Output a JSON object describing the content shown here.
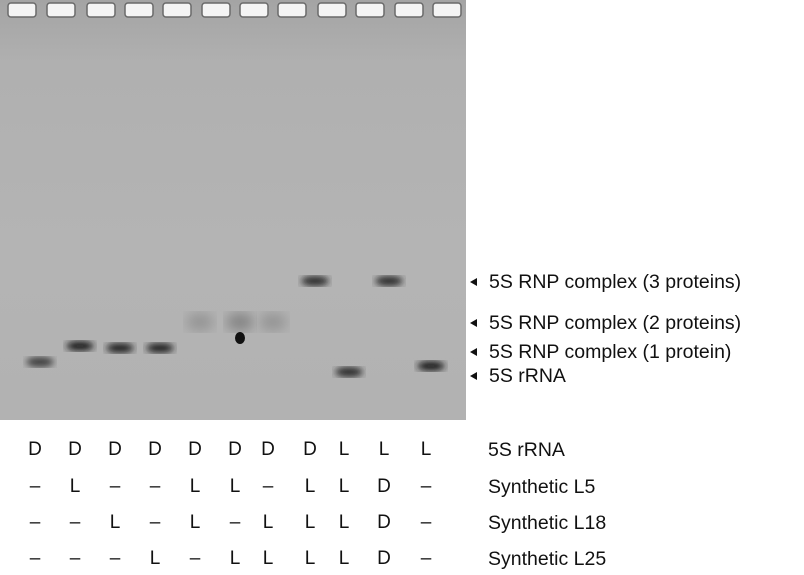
{
  "gel": {
    "lanes": 11,
    "bands": [
      {
        "lane": 1,
        "species": "5S rRNA",
        "intensity": 0.75
      },
      {
        "lane": 2,
        "species": "5S RNP complex (1 protein)",
        "intensity": 0.95
      },
      {
        "lane": 3,
        "species": "5S RNP complex (1 protein)",
        "intensity": 0.9
      },
      {
        "lane": 4,
        "species": "5S RNP complex (1 protein)",
        "intensity": 0.9
      },
      {
        "lane": 5,
        "species": "5S RNP complex (2 proteins)",
        "intensity": 0.2
      },
      {
        "lane": 6,
        "species": "5S RNP complex (2 proteins)",
        "intensity": 0.3
      },
      {
        "lane": 7,
        "species": "5S RNP complex (2 proteins)",
        "intensity": 0.2
      },
      {
        "lane": 8,
        "species": "5S RNP complex (3 proteins)",
        "intensity": 0.85
      },
      {
        "lane": 9,
        "species": "5S rRNA",
        "intensity": 0.85
      },
      {
        "lane": 10,
        "species": "5S RNP complex (3 proteins)",
        "intensity": 0.85
      },
      {
        "lane": 11,
        "species": "5S rRNA",
        "intensity": 0.95
      }
    ]
  },
  "band_labels": [
    "5S RNP complex (3 proteins)",
    "5S RNP complex (2 proteins)",
    "5S RNP complex (1 protein)",
    "5S rRNA"
  ],
  "table": {
    "rows": [
      {
        "label": "5S rRNA",
        "cells": [
          "D",
          "D",
          "D",
          "D",
          "D",
          "D",
          "D",
          "D",
          "L",
          "L",
          "L"
        ]
      },
      {
        "label": "Synthetic L5",
        "cells": [
          "–",
          "L",
          "–",
          "–",
          "L",
          "L",
          "–",
          "L",
          "L",
          "D",
          "–"
        ]
      },
      {
        "label": "Synthetic L18",
        "cells": [
          "–",
          "–",
          "L",
          "–",
          "L",
          "–",
          "L",
          "L",
          "L",
          "D",
          "–"
        ]
      },
      {
        "label": "Synthetic L25",
        "cells": [
          "–",
          "–",
          "–",
          "L",
          "–",
          "L",
          "L",
          "L",
          "L",
          "D",
          "–"
        ]
      }
    ]
  }
}
